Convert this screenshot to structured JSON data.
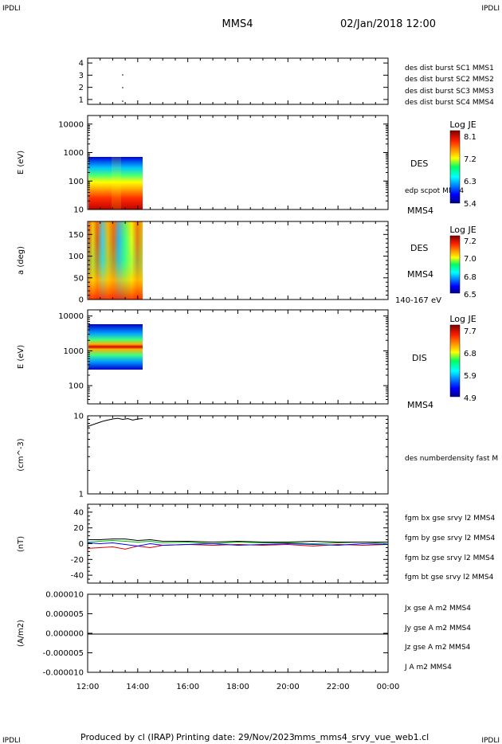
{
  "header": {
    "corner_tl": "IPDLI",
    "corner_tr": "IPDLI",
    "corner_bl": "IPDLI",
    "corner_br": "IPDLI",
    "spacecraft": "MMS4",
    "datetime": "02/Jan/2018 12:00"
  },
  "footer": {
    "produced_by": "Produced by cl (IRAP)",
    "printing_date": "Printing date: 29/Nov/2023",
    "filename": "mms_mms4_srvy_vue_web1.cl"
  },
  "colors": {
    "mms1": "#0000ff",
    "mms2": "#dd00dd",
    "mms3": "#dd0000",
    "mms4": "#00bb00",
    "bx": "#dd0000",
    "by": "#00bb00",
    "bz": "#0000ff",
    "bt": "#000000"
  },
  "chart_data": [
    {
      "type": "scatter",
      "panel": "burst",
      "x_unit": "hours",
      "yticks": [
        "1",
        "2",
        "3",
        "4"
      ],
      "ylim": [
        0.6,
        4.4
      ],
      "legend": [
        "des dist burst SC1 MMS1",
        "des dist burst SC2 MMS2",
        "des dist burst SC3 MMS3",
        "des dist burst SC4 MMS4"
      ],
      "points": [
        {
          "x": 13.35,
          "y": 1
        },
        {
          "x": 13.35,
          "y": 2
        },
        {
          "x": 13.35,
          "y": 3
        }
      ]
    },
    {
      "type": "heatmap",
      "panel": "des_energy",
      "ylabel": "E (eV)",
      "yscale": "log",
      "ylim": [
        10,
        20000
      ],
      "yticks": [
        "10",
        "100",
        "1000",
        "10000"
      ],
      "x_range_data": [
        12.0,
        14.2
      ],
      "y_range_data": [
        10,
        1000
      ],
      "label_right": "DES",
      "label_extra": "edp scpot MMS4",
      "label_sc": "MMS4",
      "colorbar": {
        "title": "Log JE",
        "ticks": [
          "8.1",
          "7.2",
          "6.3",
          "5.4"
        ]
      }
    },
    {
      "type": "heatmap",
      "panel": "des_pitch",
      "ylabel": "a (deg)",
      "ylim": [
        0,
        180
      ],
      "yticks": [
        "0",
        "50",
        "100",
        "150"
      ],
      "x_range_data": [
        12.0,
        14.2
      ],
      "label_right": "DES",
      "label_sc": "MMS4",
      "label_energy": "140-167 eV",
      "colorbar": {
        "title": "Log JE",
        "ticks": [
          "7.2",
          "7.0",
          "6.8",
          "6.5"
        ]
      }
    },
    {
      "type": "heatmap",
      "panel": "dis_energy",
      "ylabel": "E (eV)",
      "yscale": "log",
      "ylim": [
        30,
        15000
      ],
      "yticks": [
        "100",
        "1000",
        "10000"
      ],
      "x_range_data": [
        12.0,
        14.2
      ],
      "y_range_data": [
        200,
        10000
      ],
      "label_right": "DIS",
      "label_sc": "MMS4",
      "colorbar": {
        "title": "Log JE",
        "ticks": [
          "7.7",
          "6.8",
          "5.9",
          "4.9"
        ]
      }
    },
    {
      "type": "line",
      "panel": "density",
      "ylabel": "(cm^-3)",
      "yscale": "log",
      "ylim": [
        1,
        10
      ],
      "yticks": [
        "1",
        "10"
      ],
      "legend": [
        "des numberdensity fast M"
      ],
      "x": [
        12.0,
        12.2,
        12.4,
        12.6,
        12.8,
        13.0,
        13.2,
        13.4,
        13.6,
        13.8,
        14.0,
        14.2
      ],
      "y": [
        7.3,
        7.7,
        8.1,
        8.5,
        8.8,
        9.1,
        9.3,
        9.0,
        9.2,
        8.8,
        9.1,
        9.2
      ]
    },
    {
      "type": "line",
      "panel": "fgm",
      "ylabel": "(nT)",
      "ylim": [
        -50,
        50
      ],
      "yticks": [
        "-40",
        "-20",
        "0",
        "20",
        "40"
      ],
      "legend": [
        "fgm bx gse srvy l2 MMS4",
        "fgm by gse srvy l2 MMS4",
        "fgm bz gse srvy l2 MMS4",
        "fgm bt gse srvy l2 MMS4"
      ],
      "x": [
        12,
        12.5,
        13,
        13.5,
        14,
        14.5,
        15,
        16,
        17,
        18,
        19,
        20,
        21,
        22,
        23,
        24
      ],
      "series": [
        {
          "values": [
            -6,
            -5,
            -4,
            -7,
            -3,
            -5,
            -2,
            -1,
            -2,
            -1,
            -2,
            -1,
            -3,
            -1,
            -2,
            -1
          ]
        },
        {
          "values": [
            2,
            3,
            4,
            3,
            2,
            3,
            1,
            2,
            0,
            2,
            1,
            1,
            0,
            1,
            2,
            0
          ]
        },
        {
          "values": [
            1,
            0,
            1,
            -1,
            -3,
            0,
            -2,
            -1,
            0,
            -2,
            -1,
            0,
            -1,
            -2,
            0,
            -1
          ]
        },
        {
          "values": [
            5,
            5,
            6,
            6,
            4,
            5,
            3,
            3,
            2,
            3,
            2,
            2,
            3,
            2,
            2,
            2
          ]
        }
      ]
    },
    {
      "type": "line",
      "panel": "current",
      "ylabel": "(A/m2)",
      "ylim": [
        -1e-05,
        1e-05
      ],
      "yticks": [
        "-0.000010",
        "-0.000005",
        "0.000000",
        "0.000005",
        "0.000010"
      ],
      "legend": [
        "Jx gse A m2 MMS4",
        "Jy gse A m2 MMS4",
        "Jz gse A m2 MMS4",
        "J A m2 MMS4"
      ],
      "x": [
        12,
        24
      ],
      "y": [
        0,
        0
      ]
    }
  ],
  "xaxis": {
    "ticks": [
      "12:00",
      "14:00",
      "16:00",
      "18:00",
      "20:00",
      "22:00",
      "00:00"
    ]
  }
}
